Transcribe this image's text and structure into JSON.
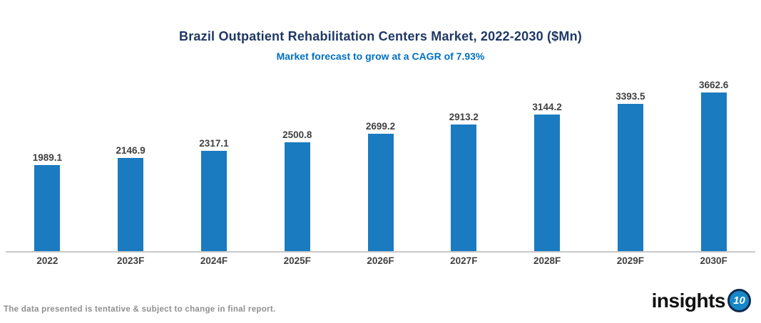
{
  "chart_data": {
    "type": "bar",
    "title": "Brazil Outpatient Rehabilitation Centers Market, 2022-2030 ($Mn)",
    "subtitle": "Market forecast to grow at a CAGR of 7.93%",
    "categories": [
      "2022",
      "2023F",
      "2024F",
      "2025F",
      "2026F",
      "2027F",
      "2028F",
      "2029F",
      "2030F"
    ],
    "values": [
      1989.1,
      2146.9,
      2317.1,
      2500.8,
      2699.2,
      2913.2,
      3144.2,
      3393.5,
      3662.6
    ],
    "value_labels": [
      "1989.1",
      "2146.9",
      "2317.1",
      "2500.8",
      "2699.2",
      "2913.2",
      "3144.2",
      "3393.5",
      "3662.6"
    ],
    "xlabel": "",
    "ylabel": "",
    "ylim": [
      0,
      4000
    ],
    "grid": false,
    "legend": "none",
    "colors": {
      "bar": "#1B7BC0",
      "value_label": "#404040",
      "category_label": "#404040",
      "axis_line": "#C9C9C9",
      "title": "#1F3864",
      "subtitle": "#0070C0"
    }
  },
  "footer": {
    "note": "The data presented is tentative & subject to change in final report.",
    "logo_text": "insights",
    "logo_badge": "10",
    "logo_badge_color": "#1887C8"
  }
}
